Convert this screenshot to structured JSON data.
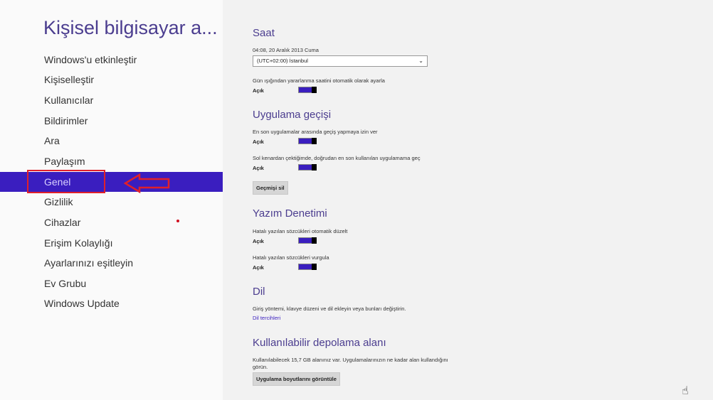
{
  "sidebar": {
    "title": "Kişisel bilgisayar a...",
    "items": [
      {
        "label": "Windows'u etkinleştir"
      },
      {
        "label": "Kişiselleştir"
      },
      {
        "label": "Kullanıcılar"
      },
      {
        "label": "Bildirimler"
      },
      {
        "label": "Ara"
      },
      {
        "label": "Paylaşım"
      },
      {
        "label": "Genel",
        "selected": true
      },
      {
        "label": "Gizlilik"
      },
      {
        "label": "Cihazlar"
      },
      {
        "label": "Erişim Kolaylığı"
      },
      {
        "label": "Ayarlarınızı eşitleyin"
      },
      {
        "label": "Ev Grubu"
      },
      {
        "label": "Windows Update"
      }
    ]
  },
  "main": {
    "clock": {
      "title": "Saat",
      "datetime": "04:08, 20 Aralık 2013 Cuma",
      "timezone": "(UTC+02:00) İstanbul",
      "dst_label": "Gün ışığından yararlanma saatini otomatik olarak ayarla",
      "dst_state": "Açık"
    },
    "app_switch": {
      "title": "Uygulama geçişi",
      "opt1_label": "En son uygulamalar arasında geçiş yapmaya izin ver",
      "opt1_state": "Açık",
      "opt2_label": "Sol kenardan çektiğimde, doğrudan en son kullanılan uygulamama geç",
      "opt2_state": "Açık",
      "clear_button": "Geçmişi sil"
    },
    "spelling": {
      "title": "Yazım Denetimi",
      "opt1_label": "Hatalı yazılan sözcükleri otomatik düzelt",
      "opt1_state": "Açık",
      "opt2_label": "Hatalı yazılan sözcükleri vurgula",
      "opt2_state": "Açık"
    },
    "language": {
      "title": "Dil",
      "description": "Giriş yöntemi, klavye düzeni ve dil ekleyin veya bunları değiştirin.",
      "link": "Dil tercihleri"
    },
    "storage": {
      "title": "Kullanılabilir depolama alanı",
      "description_line1": "Kullanılabilecek 15,7 GB alanınız var. Uygulamalarınızın ne kadar alan kullandığını",
      "description_line2": "görün.",
      "button": "Uygulama boyutlarını görüntüle"
    }
  },
  "colors": {
    "accent": "#3a1ebf",
    "highlight": "#e0202a"
  }
}
